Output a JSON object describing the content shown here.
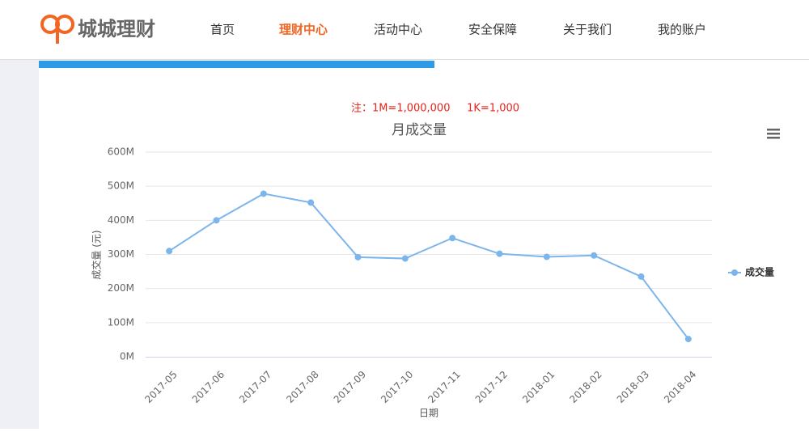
{
  "header": {
    "logo": "城城理财",
    "nav": [
      "首页",
      "理财中心",
      "活动中心",
      "安全保障",
      "关于我们",
      "我的账户"
    ]
  },
  "note": "注：1M=1,000,000     1K=1,000",
  "chart_data": {
    "type": "line",
    "title": "月成交量",
    "x_label": "日期",
    "y_label": "成交量 (元)",
    "categories": [
      "2017-05",
      "2017-06",
      "2017-07",
      "2017-08",
      "2017-09",
      "2017-10",
      "2017-11",
      "2017-12",
      "2018-01",
      "2018-02",
      "2018-03",
      "2018-04"
    ],
    "series": [
      {
        "name": "成交量",
        "color": "#7cb5ec",
        "values": [
          310000000,
          400000000,
          478000000,
          452000000,
          292000000,
          288000000,
          348000000,
          302000000,
          293000000,
          297000000,
          235000000,
          52000000
        ]
      }
    ],
    "ylim": [
      0,
      600000000
    ],
    "yticks": [
      {
        "value": 0,
        "label": "0M"
      },
      {
        "value": 100000000,
        "label": "100M"
      },
      {
        "value": 200000000,
        "label": "200M"
      },
      {
        "value": 300000000,
        "label": "300M"
      },
      {
        "value": 400000000,
        "label": "400M"
      },
      {
        "value": 500000000,
        "label": "500M"
      },
      {
        "value": 600000000,
        "label": "600M"
      }
    ],
    "grid": true,
    "legend": "right"
  }
}
